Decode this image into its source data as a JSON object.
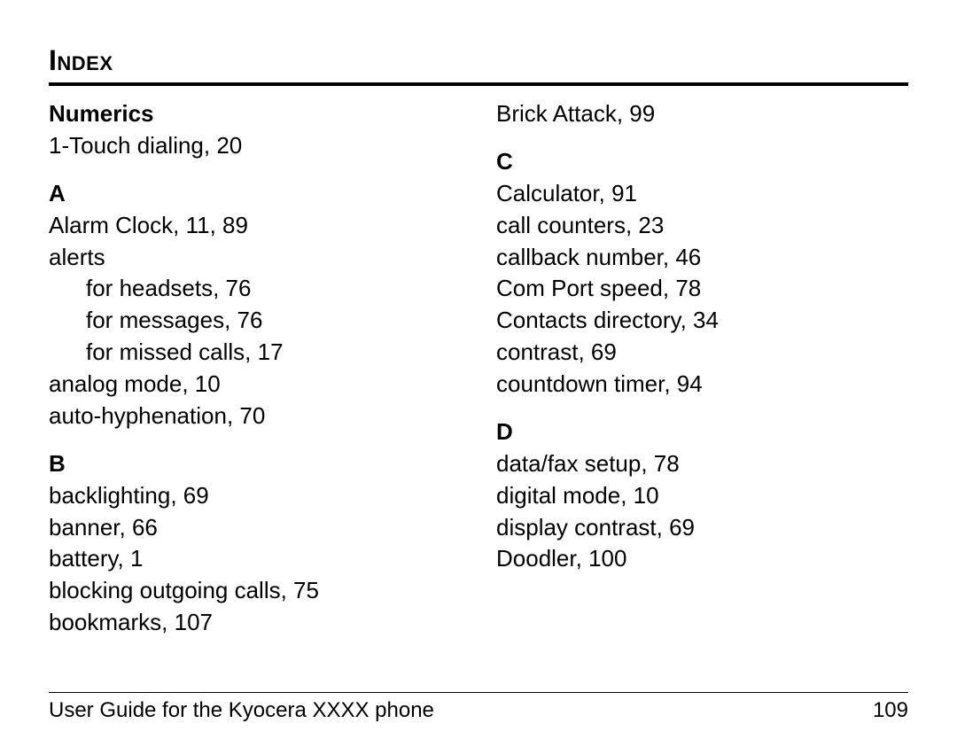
{
  "page_title": "Index",
  "colors": {
    "text": "#000000",
    "background": "#ffffff",
    "rule": "#000000"
  },
  "typography": {
    "title_fontsize_pt": 24,
    "body_fontsize_pt": 20,
    "section_head_weight": "bold",
    "title_variant": "small-caps",
    "font_family": "Arial"
  },
  "footer": {
    "guide_text": "User Guide for the Kyocera XXXX phone",
    "page_number": "109"
  },
  "left_column": {
    "numerics": {
      "heading": "Numerics",
      "entries": [
        "1-Touch dialing, 20"
      ]
    },
    "A": {
      "heading": "A",
      "entries": [
        "Alarm Clock, 11, 89",
        "alerts"
      ],
      "sub_entries": [
        "for headsets, 76",
        "for messages, 76",
        "for missed calls, 17"
      ],
      "entries2": [
        "analog mode, 10",
        "auto-hyphenation, 70"
      ]
    },
    "B": {
      "heading": "B",
      "entries": [
        "backlighting, 69",
        "banner, 66",
        "battery, 1",
        "blocking outgoing calls, 75",
        "bookmarks, 107"
      ]
    }
  },
  "right_column": {
    "top_entry": "Brick Attack, 99",
    "C": {
      "heading": "C",
      "entries": [
        "Calculator, 91",
        "call counters, 23",
        "callback number, 46",
        "Com Port speed, 78",
        "Contacts directory, 34",
        "contrast, 69",
        "countdown timer, 94"
      ]
    },
    "D": {
      "heading": "D",
      "entries": [
        "data/fax setup, 78",
        "digital mode, 10",
        "display contrast, 69",
        "Doodler, 100"
      ]
    }
  }
}
